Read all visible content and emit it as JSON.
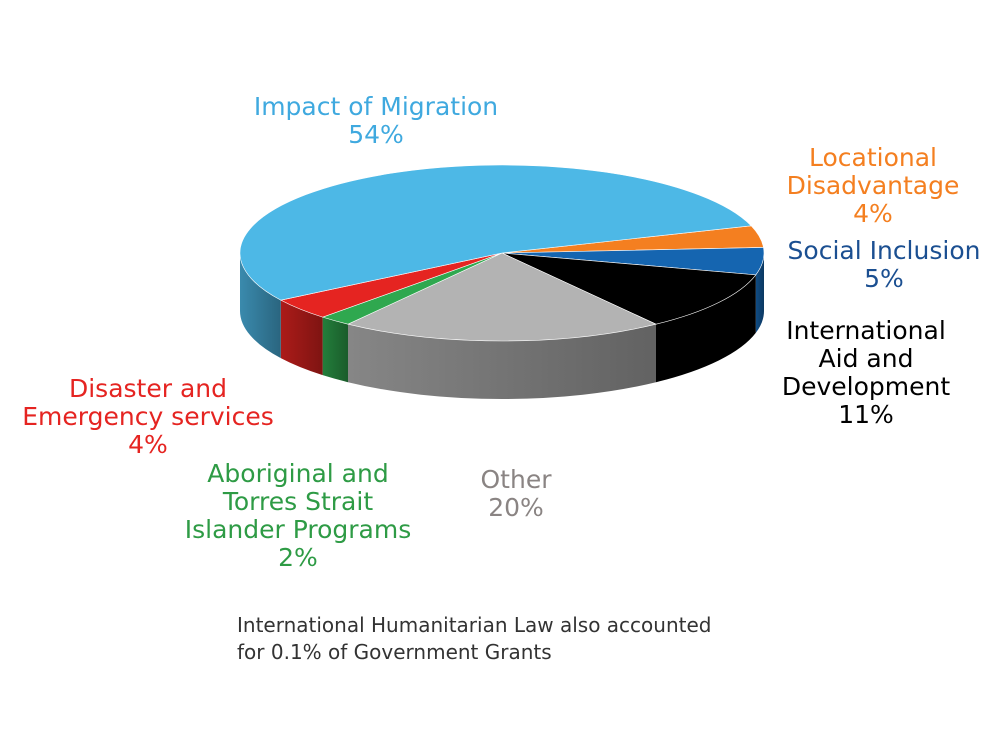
{
  "chart_data": {
    "type": "pie",
    "three_d": true,
    "start": "clockwise from the top-right",
    "legend": "none (labels placed around the pie)",
    "slices": [
      {
        "label_lines": [
          "Locational",
          "Disadvantage"
        ],
        "pct_text": "4%",
        "value": 4,
        "color": "#F47F20",
        "label_color": "#F47F20"
      },
      {
        "label_lines": [
          "Social Inclusion"
        ],
        "pct_text": "5%",
        "value": 5,
        "color": "#1565B0",
        "label_color": "#1B4F91"
      },
      {
        "label_lines": [
          "International",
          "Aid and",
          "Development"
        ],
        "pct_text": "11%",
        "value": 11,
        "color": "#000000",
        "label_color": "#000000"
      },
      {
        "label_lines": [
          "Other"
        ],
        "pct_text": "20%",
        "value": 20,
        "color": "#B3B3B3",
        "label_color": "#8A8483"
      },
      {
        "label_lines": [
          "Aboriginal and",
          "Torres Strait",
          "Islander Programs"
        ],
        "pct_text": "2%",
        "value": 2,
        "color": "#2FA84F",
        "label_color": "#2E9B45"
      },
      {
        "label_lines": [
          "Disaster and",
          "Emergency services"
        ],
        "pct_text": "4%",
        "value": 4,
        "color": "#E52421",
        "label_color": "#E52421"
      },
      {
        "label_lines": [
          "Impact of Migration"
        ],
        "pct_text": "54%",
        "value": 54,
        "color": "#4DB8E6",
        "label_color": "#3FA9DF"
      }
    ]
  },
  "note": {
    "line1": "International Humanitarian Law also accounted",
    "line2": "for 0.1% of Government Grants"
  }
}
